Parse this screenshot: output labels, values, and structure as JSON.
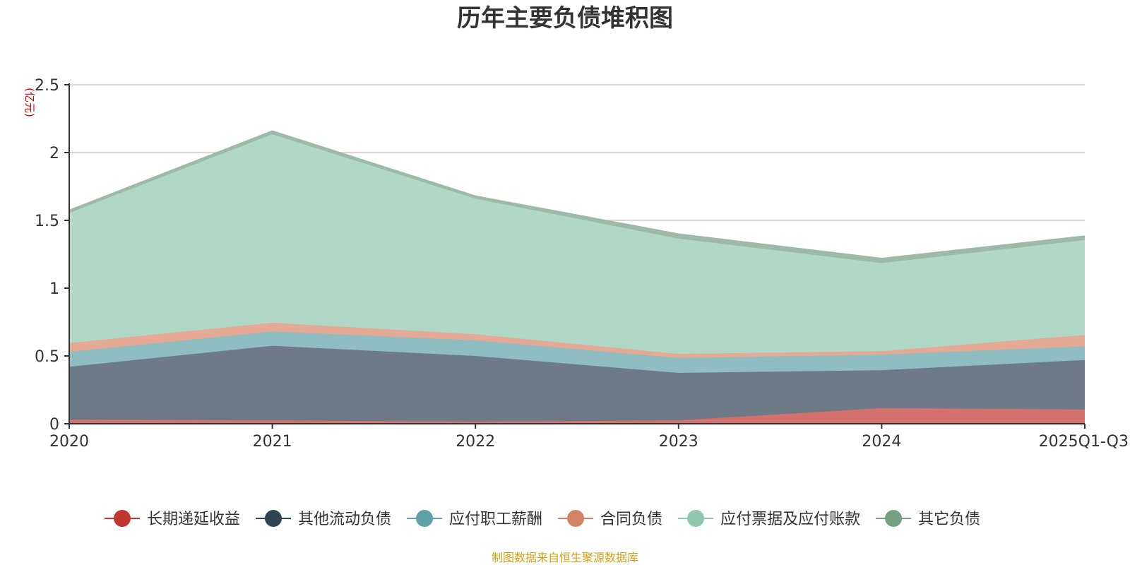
{
  "chart_data": {
    "type": "area",
    "stacked": true,
    "title": "历年主要负债堆积图",
    "unit_label": "(亿元)",
    "categories": [
      "2020",
      "2021",
      "2022",
      "2023",
      "2024",
      "2025Q1-Q3"
    ],
    "ylim": [
      0,
      2.5
    ],
    "yticks": [
      "0",
      "0.5",
      "1",
      "1.5",
      "2",
      "2.5"
    ],
    "grid": true,
    "legend_position": "bottom",
    "series": [
      {
        "name": "长期递延收益",
        "color": "#c23531",
        "fill": "#d4706e",
        "values": [
          0.03,
          0.025,
          0.015,
          0.025,
          0.115,
          0.105
        ]
      },
      {
        "name": "其他流动负债",
        "color": "#2f4554",
        "fill": "#6e7a86",
        "values": [
          0.39,
          0.55,
          0.485,
          0.35,
          0.28,
          0.365
        ]
      },
      {
        "name": "应付职工薪酬",
        "color": "#61a0a8",
        "fill": "#8fbdc2",
        "values": [
          0.11,
          0.105,
          0.115,
          0.11,
          0.115,
          0.1
        ]
      },
      {
        "name": "合同负债",
        "color": "#d48265",
        "fill": "#e3a995",
        "values": [
          0.065,
          0.065,
          0.045,
          0.03,
          0.025,
          0.085
        ]
      },
      {
        "name": "应付票据及应付账款",
        "color": "#91c7ae",
        "fill": "#b1d7c6",
        "values": [
          0.96,
          1.39,
          1.0,
          0.85,
          0.65,
          0.7
        ]
      },
      {
        "name": "其它负债",
        "color": "#749f83",
        "fill": "#9db9a8",
        "values": [
          0.02,
          0.025,
          0.02,
          0.035,
          0.035,
          0.03
        ]
      }
    ],
    "source": "制图数据来自恒生聚源数据库"
  }
}
